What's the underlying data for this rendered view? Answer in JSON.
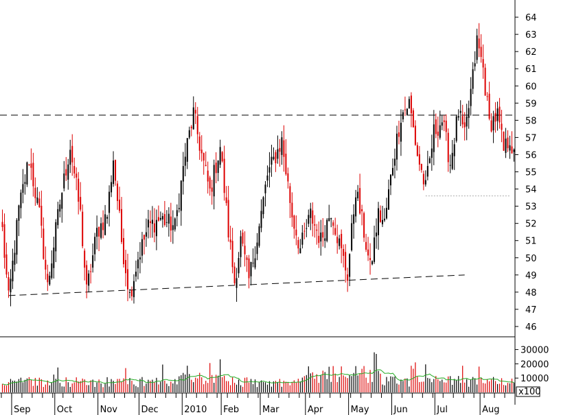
{
  "chart_data": {
    "type": "candlestick",
    "colors": {
      "up": "#000000",
      "down": "#dd0000",
      "volume_ma": "#22aa22",
      "grid": "#000000"
    },
    "price_axis": {
      "min": 45.4,
      "max": 65,
      "ticks": [
        46,
        47,
        48,
        49,
        50,
        51,
        52,
        53,
        54,
        55,
        56,
        57,
        58,
        59,
        60,
        61,
        62,
        63,
        64
      ]
    },
    "volume_axis": {
      "min": 0,
      "max": 37000,
      "ticks": [
        10000,
        20000,
        30000
      ],
      "tick_labels": [
        "10000",
        "20000",
        "30000"
      ],
      "multiplier_label": "x100"
    },
    "months": [
      {
        "label": "Sep",
        "index": 5
      },
      {
        "label": "Oct",
        "index": 26
      },
      {
        "label": "Nov",
        "index": 47
      },
      {
        "label": "Dec",
        "index": 67
      },
      {
        "label": "2010",
        "index": 88
      },
      {
        "label": "Feb",
        "index": 107
      },
      {
        "label": "Mar",
        "index": 126
      },
      {
        "label": "Apr",
        "index": 148
      },
      {
        "label": "May",
        "index": 169
      },
      {
        "label": "Jun",
        "index": 190
      },
      {
        "label": "Jul",
        "index": 211
      },
      {
        "label": "Aug",
        "index": 233
      }
    ],
    "resistance_line": {
      "price": 58.3
    },
    "support_line": {
      "start": {
        "index": 3,
        "price": 47.8
      },
      "end": {
        "index": 225,
        "price": 49.0
      }
    },
    "dotted_line": {
      "start_index": 206,
      "end_index": 247,
      "price": 53.6
    },
    "anchors": [
      {
        "i": 0,
        "c": 51.6
      },
      {
        "i": 3,
        "c": 47.5
      },
      {
        "i": 8,
        "c": 52.8
      },
      {
        "i": 13,
        "c": 55.8
      },
      {
        "i": 18,
        "c": 52.5
      },
      {
        "i": 22,
        "c": 48.3
      },
      {
        "i": 28,
        "c": 53.2
      },
      {
        "i": 33,
        "c": 56.5
      },
      {
        "i": 38,
        "c": 52.5
      },
      {
        "i": 41,
        "c": 48.0
      },
      {
        "i": 46,
        "c": 51.5
      },
      {
        "i": 51,
        "c": 52.5
      },
      {
        "i": 54,
        "c": 55.8
      },
      {
        "i": 58,
        "c": 51.0
      },
      {
        "i": 62,
        "c": 47.8
      },
      {
        "i": 66,
        "c": 50.0
      },
      {
        "i": 71,
        "c": 51.8
      },
      {
        "i": 77,
        "c": 52.3
      },
      {
        "i": 84,
        "c": 51.8
      },
      {
        "i": 89,
        "c": 56.0
      },
      {
        "i": 93,
        "c": 58.4
      },
      {
        "i": 97,
        "c": 56.0
      },
      {
        "i": 101,
        "c": 53.8
      },
      {
        "i": 106,
        "c": 56.5
      },
      {
        "i": 110,
        "c": 51.5
      },
      {
        "i": 113,
        "c": 48.6
      },
      {
        "i": 116,
        "c": 51.0
      },
      {
        "i": 120,
        "c": 48.7
      },
      {
        "i": 125,
        "c": 51.8
      },
      {
        "i": 129,
        "c": 54.8
      },
      {
        "i": 136,
        "c": 56.8
      },
      {
        "i": 141,
        "c": 52.5
      },
      {
        "i": 145,
        "c": 50.5
      },
      {
        "i": 150,
        "c": 52.5
      },
      {
        "i": 155,
        "c": 51.0
      },
      {
        "i": 160,
        "c": 52.8
      },
      {
        "i": 165,
        "c": 50.3
      },
      {
        "i": 168,
        "c": 49.0
      },
      {
        "i": 172,
        "c": 54.0
      },
      {
        "i": 176,
        "c": 51.5
      },
      {
        "i": 179,
        "c": 49.3
      },
      {
        "i": 183,
        "c": 52.5
      },
      {
        "i": 186,
        "c": 52.0
      },
      {
        "i": 190,
        "c": 55.5
      },
      {
        "i": 194,
        "c": 58.3
      },
      {
        "i": 198,
        "c": 59.0
      },
      {
        "i": 202,
        "c": 56.0
      },
      {
        "i": 206,
        "c": 54.0
      },
      {
        "i": 210,
        "c": 57.3
      },
      {
        "i": 214,
        "c": 58.0
      },
      {
        "i": 218,
        "c": 55.5
      },
      {
        "i": 222,
        "c": 58.5
      },
      {
        "i": 225,
        "c": 57.0
      },
      {
        "i": 229,
        "c": 60.5
      },
      {
        "i": 231,
        "c": 62.6
      },
      {
        "i": 234,
        "c": 61.0
      },
      {
        "i": 237,
        "c": 57.8
      },
      {
        "i": 241,
        "c": 58.3
      },
      {
        "i": 244,
        "c": 56.2
      },
      {
        "i": 247,
        "c": 57.0
      },
      {
        "i": 249,
        "c": 55.8
      }
    ],
    "num_bars": 250
  }
}
